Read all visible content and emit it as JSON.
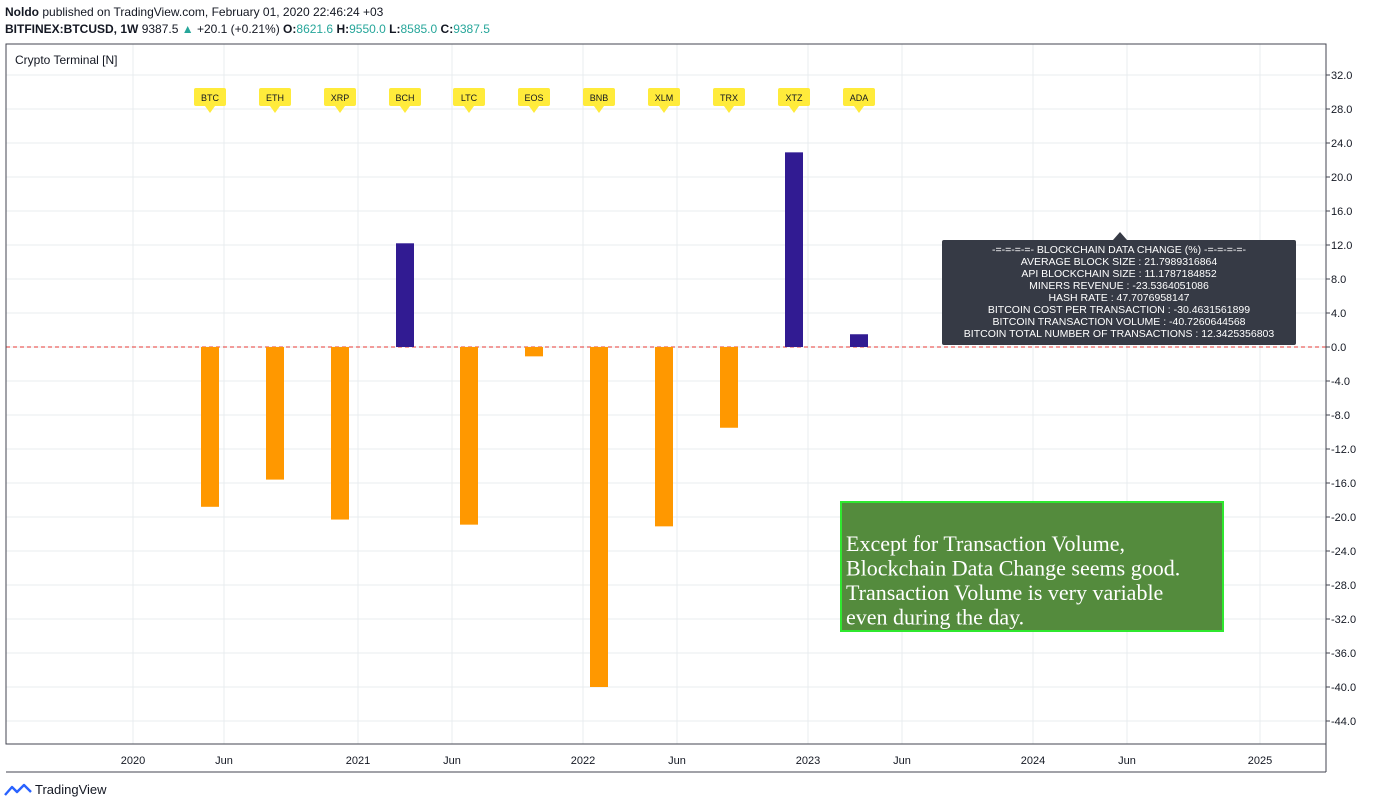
{
  "header": {
    "author": "Noldo",
    "published": "published on TradingView.com, February 01, 2020 22:46:24 +03",
    "symbol": "BITFINEX:BTCUSD, 1W",
    "price": "9387.5",
    "change_arrow": "▲",
    "change": "+20.1 (+0.21%)",
    "o_label": "O:",
    "o_value": "8621.6",
    "h_label": "H:",
    "h_value": "9550.0",
    "l_label": "L:",
    "l_value": "8585.0",
    "c_label": "C:",
    "c_value": "9387.5"
  },
  "indicator_label": "Crypto Terminal [N]",
  "footer": {
    "brand": "TradingView"
  },
  "colors": {
    "positive": "#311b92",
    "negative": "#ff9800",
    "flag": "#ffeb3b",
    "zero_line": "#e53935",
    "grid": "#e9ecef",
    "panel_bg": "#363a45",
    "note_bg": "#548b3d",
    "note_border": "#2fe82f"
  },
  "chart_data": {
    "type": "bar",
    "categories": [
      "BTC",
      "ETH",
      "XRP",
      "BCH",
      "LTC",
      "EOS",
      "BNB",
      "XLM",
      "TRX",
      "XTZ",
      "ADA"
    ],
    "values": [
      -18.8,
      -15.6,
      -20.3,
      12.2,
      -20.9,
      -1.1,
      -40.0,
      -21.1,
      -9.5,
      22.9,
      1.5
    ],
    "ylim": [
      -46.5,
      32.5
    ],
    "y_ticks": [
      "32.0",
      "28.0",
      "24.0",
      "20.0",
      "16.0",
      "12.0",
      "8.0",
      "4.0",
      "0.0",
      "-4.0",
      "-8.0",
      "-12.0",
      "-16.0",
      "-20.0",
      "-24.0",
      "-28.0",
      "-32.0",
      "-36.0",
      "-40.0",
      "-44.0"
    ],
    "x_ticks": [
      "2020",
      "Jun",
      "2021",
      "Jun",
      "2022",
      "Jun",
      "2023",
      "Jun",
      "2024",
      "Jun",
      "2025"
    ],
    "zero_line": true,
    "grid": true
  },
  "info_panel": {
    "title": "-=-=-=-=- BLOCKCHAIN DATA CHANGE (%) -=-=-=-=-",
    "rows": [
      "AVERAGE BLOCK SIZE     : 21.7989316864",
      "API BLOCKCHAIN SIZE    : 11.1787184852",
      "MINERS REVENUE     : -23.5364051086",
      "HASH RATE     : 47.7076958147",
      "BITCOIN COST PER TRANSACTION     : -30.4631561899",
      "BITCOIN TRANSACTION VOLUME     : -40.7260644568",
      "BITCOIN TOTAL NUMBER OF TRANSACTIONS     : 12.3425356803"
    ]
  },
  "note": {
    "lines": [
      "Except for Transaction Volume,",
      "Blockchain Data Change seems good.",
      "Transaction Volume is very variable",
      "even during the day."
    ]
  }
}
